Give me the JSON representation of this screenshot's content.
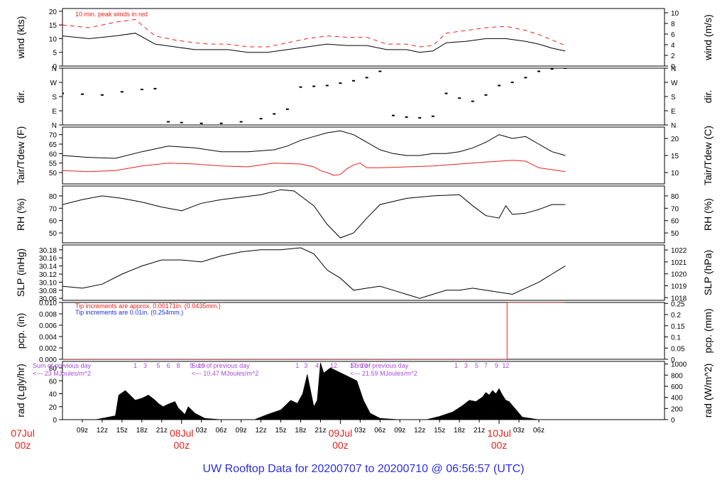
{
  "title": "UW Rooftop Data for 20200707  to  20200710 @ 06:56:57  (UTC)",
  "colors": {
    "black": "#000000",
    "red": "#e8201c",
    "blue": "#1a2fd8",
    "purple": "#a64bd6",
    "title": "#2a2ee0"
  },
  "time_axis": {
    "start_hour": -12,
    "end_hour": 79,
    "hour_ticks": [
      {
        "h": -9,
        "label": "09z"
      },
      {
        "h": -6,
        "label": "12z"
      },
      {
        "h": -3,
        "label": "15z"
      },
      {
        "h": 0,
        "label": "18z"
      },
      {
        "h": 3,
        "label": "21z"
      },
      {
        "h": 9,
        "label": "03z"
      },
      {
        "h": 12,
        "label": "06z"
      },
      {
        "h": 15,
        "label": "09z"
      },
      {
        "h": 18,
        "label": "12z"
      },
      {
        "h": 21,
        "label": "15z"
      },
      {
        "h": 24,
        "label": "18z"
      },
      {
        "h": 27,
        "label": "21z"
      },
      {
        "h": 33,
        "label": "03z"
      },
      {
        "h": 36,
        "label": "06z"
      },
      {
        "h": 39,
        "label": "09z"
      },
      {
        "h": 42,
        "label": "12z"
      },
      {
        "h": 45,
        "label": "15z"
      },
      {
        "h": 48,
        "label": "18z"
      },
      {
        "h": 51,
        "label": "21z"
      },
      {
        "h": 57,
        "label": "03z"
      },
      {
        "h": 60,
        "label": "06z"
      }
    ],
    "day_marks": [
      {
        "h": -18,
        "date": "07Jul",
        "hour": "00z"
      },
      {
        "h": 6,
        "date": "08Jul",
        "hour": "00z"
      },
      {
        "h": 30,
        "date": "09Jul",
        "hour": "00z"
      },
      {
        "h": 54,
        "date": "10Jul",
        "hour": "00z"
      }
    ]
  },
  "chart_data": [
    {
      "type": "line",
      "panel": "wind",
      "ylabel_left": "wind (kts)",
      "ylabel_right": "wind (m/s)",
      "ylim": [
        0,
        21
      ],
      "yticks_left": [
        0,
        5,
        10,
        15,
        20
      ],
      "yticks_right": [
        0,
        2,
        4,
        6,
        8,
        10
      ],
      "right_scale": 0.5144,
      "annotation": "10 min. peak winds in red",
      "series": [
        {
          "role": "sustained",
          "color": "black",
          "x": [
            -12,
            -8,
            -4,
            -1,
            2,
            5,
            8,
            10,
            13,
            16,
            19,
            22,
            25,
            28,
            31,
            34,
            37,
            40,
            42,
            44,
            46,
            49,
            52,
            55,
            58,
            60,
            62,
            64
          ],
          "y": [
            11,
            10,
            11,
            12,
            8,
            7,
            6,
            6,
            6,
            5,
            5,
            6,
            7,
            8,
            7.5,
            7.5,
            6,
            6,
            5,
            5.5,
            8.5,
            9,
            10,
            10,
            9,
            8,
            6.5,
            5.5
          ]
        },
        {
          "role": "peak",
          "color": "red",
          "x": [
            -12,
            -8,
            -4,
            -1,
            2,
            5,
            8,
            10,
            13,
            16,
            19,
            22,
            25,
            28,
            31,
            34,
            37,
            40,
            42,
            44,
            46,
            49,
            52,
            55,
            58,
            60,
            62,
            64
          ],
          "y": [
            15,
            14,
            16,
            17,
            11,
            9.5,
            8.5,
            8,
            8,
            7,
            7,
            8.5,
            10,
            11,
            10.5,
            10.5,
            8,
            8,
            7,
            7.5,
            12,
            13,
            14,
            14.5,
            13,
            11.5,
            9.5,
            7.5
          ]
        }
      ]
    },
    {
      "type": "scatter",
      "panel": "dir",
      "ylabel_left": "dir.",
      "ylabel_right": "dir.",
      "ylim": [
        0,
        360
      ],
      "ytick_values": [
        0,
        90,
        180,
        270,
        360
      ],
      "ytick_labels": [
        "N",
        "E",
        "S",
        "W",
        "N"
      ],
      "series": [
        {
          "color": "black",
          "x": [
            -12,
            -9,
            -6,
            -3,
            0,
            2,
            4,
            6,
            9,
            12,
            15,
            18,
            20,
            22,
            24,
            26,
            28,
            30,
            32,
            34,
            36,
            38,
            40,
            42,
            44,
            46,
            48,
            50,
            52,
            54,
            56,
            58,
            60,
            62,
            64
          ],
          "y": [
            200,
            195,
            190,
            210,
            225,
            230,
            20,
            15,
            10,
            10,
            20,
            40,
            70,
            100,
            240,
            245,
            250,
            265,
            280,
            300,
            340,
            60,
            50,
            45,
            55,
            200,
            170,
            150,
            190,
            250,
            270,
            300,
            340,
            355,
            360
          ]
        }
      ]
    },
    {
      "type": "line",
      "panel": "temp",
      "ylabel_left": "Tair/Tdew (F)",
      "ylabel_right": "Tair/Tdew (C)",
      "ylim": [
        44,
        74
      ],
      "yticks_left": [
        50,
        55,
        60,
        65,
        70
      ],
      "yticks_right": [
        10,
        15,
        20
      ],
      "series": [
        {
          "name": "Tair",
          "color": "black",
          "x": [
            -12,
            -8,
            -4,
            0,
            4,
            8,
            12,
            16,
            20,
            22,
            24,
            26,
            28,
            30,
            32,
            34,
            36,
            38,
            40,
            42,
            44,
            46,
            48,
            50,
            52,
            53,
            54,
            56,
            58,
            60,
            62,
            64
          ],
          "y": [
            59,
            58,
            57.5,
            61,
            64,
            63,
            61,
            61,
            62,
            64,
            67,
            69,
            71,
            72,
            70,
            66,
            62,
            60,
            59,
            59,
            60,
            60,
            61,
            63,
            66,
            68,
            70,
            68,
            69,
            65,
            61,
            59
          ]
        },
        {
          "name": "Tdew",
          "color": "red",
          "x": [
            -12,
            -8,
            -4,
            0,
            4,
            8,
            12,
            16,
            20,
            24,
            26,
            27,
            28,
            29,
            30,
            31,
            32,
            33,
            34,
            36,
            40,
            44,
            48,
            52,
            56,
            58,
            60,
            62,
            64
          ],
          "y": [
            51,
            50.5,
            51,
            53.5,
            55,
            54.5,
            53.5,
            53,
            55,
            54.5,
            53,
            51,
            50,
            48.5,
            49,
            52,
            54,
            55,
            52.5,
            52.5,
            53,
            53.5,
            54.5,
            55.5,
            56.5,
            56,
            52.5,
            51.5,
            50.5
          ]
        }
      ]
    },
    {
      "type": "line",
      "panel": "rh",
      "ylabel_left": "RH (%)",
      "ylabel_right": "RH (%)",
      "ylim": [
        42,
        88
      ],
      "yticks_left": [
        50,
        60,
        70,
        80
      ],
      "yticks_right": [
        50,
        60,
        70,
        80
      ],
      "series": [
        {
          "color": "black",
          "x": [
            -12,
            -9,
            -6,
            -3,
            0,
            3,
            6,
            9,
            12,
            15,
            18,
            21,
            23,
            26,
            28,
            30,
            32,
            34,
            36,
            40,
            44,
            48,
            50,
            52,
            54,
            55,
            56,
            58,
            60,
            62,
            64
          ],
          "y": [
            73,
            77,
            80,
            78,
            75,
            71,
            68,
            74,
            77,
            79,
            81,
            85,
            84,
            72,
            57,
            46,
            50,
            62,
            73,
            78,
            80,
            81,
            72,
            64,
            62,
            72,
            65,
            66,
            69,
            73,
            73
          ]
        }
      ]
    },
    {
      "type": "line",
      "panel": "slp",
      "ylabel_left": "SLP (inHg)",
      "ylabel_right": "SLP (hPa)",
      "ylim": [
        30.055,
        30.192
      ],
      "yticks_left": [
        30.06,
        30.08,
        30.1,
        30.12,
        30.14,
        30.16,
        30.18
      ],
      "yticks_right": [
        1018,
        1019,
        1020,
        1021,
        1022
      ],
      "right_scale": 33.8639,
      "series": [
        {
          "color": "black",
          "x": [
            -12,
            -9,
            -6,
            -3,
            0,
            3,
            6,
            9,
            12,
            15,
            18,
            21,
            24,
            26,
            28,
            30,
            32,
            34,
            36,
            38,
            40,
            42,
            44,
            46,
            48,
            50,
            52,
            54,
            56,
            58,
            60,
            62,
            64
          ],
          "y": [
            30.09,
            30.085,
            30.095,
            30.12,
            30.14,
            30.155,
            30.155,
            30.15,
            30.165,
            30.175,
            30.18,
            30.18,
            30.185,
            30.17,
            30.13,
            30.11,
            30.08,
            30.085,
            30.09,
            30.08,
            30.07,
            30.06,
            30.07,
            30.08,
            30.08,
            30.085,
            30.08,
            30.075,
            30.07,
            30.085,
            30.1,
            30.12,
            30.14
          ]
        }
      ]
    },
    {
      "type": "line",
      "panel": "pcp",
      "ylabel_left": "pcp. (in)",
      "ylabel_right": "pcp. (mm)",
      "ylim": [
        0,
        0.01
      ],
      "yticks_left": [
        0.0,
        0.002,
        0.004,
        0.006,
        0.008,
        0.01
      ],
      "ytick_labels_left": [
        "0.000",
        "0.002",
        "0.004",
        "0.006",
        "0.008",
        "0.010"
      ],
      "yticks_right": [
        0,
        0.05,
        0.1,
        0.15,
        0.2,
        0.25
      ],
      "ytick_labels_right": [
        "0",
        "0.05",
        "0.1",
        "0.15",
        "0.2",
        "0.25"
      ],
      "right_scale": 25.4,
      "notes": [
        {
          "text": "Tip increments are approx. 0.00171in. (0.0435mm.)",
          "color": "red"
        },
        {
          "text": "Tip increments are 0.01in. (0.254mm.)",
          "color": "blue"
        }
      ],
      "series": [
        {
          "color": "red",
          "x": [
            -12,
            55.2,
            55.2,
            64
          ],
          "y": [
            0,
            0,
            0.01,
            0.01
          ]
        }
      ]
    },
    {
      "type": "area",
      "panel": "rad",
      "ylabel_left": "rad (Lgly/hr)",
      "ylabel_right": "rad (W/m^2)",
      "ylim": [
        0,
        90
      ],
      "yticks_left": [
        0,
        20,
        40,
        60,
        80
      ],
      "yticks_right": [
        0,
        200,
        400,
        600,
        800,
        1000
      ],
      "right_scale": 11.63,
      "daily_notes": [
        {
          "h": -12,
          "line1": "Sum of previous day",
          "line2": "<--- 23 MJoules/m^2"
        },
        {
          "h": 12,
          "line1": "Sum of previous day",
          "line2": "<--- 10.47 MJoules/m^2"
        },
        {
          "h": 36,
          "line1": "Sum of previous day",
          "line2": "<--- 21.59 MJoules/m^2"
        }
      ],
      "hour_marks": [
        {
          "h": -1,
          "label": "1"
        },
        {
          "h": 0.5,
          "label": "3"
        },
        {
          "h": 2.5,
          "label": "5"
        },
        {
          "h": 4,
          "label": "6"
        },
        {
          "h": 5.5,
          "label": "8"
        },
        {
          "h": 7.5,
          "label": "9"
        },
        {
          "h": 9,
          "label": "10"
        },
        {
          "h": 23.5,
          "label": "1"
        },
        {
          "h": 24.8,
          "label": "3"
        },
        {
          "h": 26.5,
          "label": "4"
        },
        {
          "h": 29,
          "label": "12"
        },
        {
          "h": 32,
          "label": "17"
        },
        {
          "h": 33.6,
          "label": "20"
        },
        {
          "h": 47.5,
          "label": "1"
        },
        {
          "h": 49,
          "label": "3"
        },
        {
          "h": 50.6,
          "label": "5"
        },
        {
          "h": 52,
          "label": "7"
        },
        {
          "h": 53.6,
          "label": "9"
        },
        {
          "h": 55,
          "label": "12"
        }
      ],
      "series": [
        {
          "color": "black",
          "x": [
            -10,
            -7,
            -4,
            -3.5,
            -2.5,
            -1,
            0,
            1,
            2,
            2.5,
            3.2,
            4,
            5,
            5.5,
            6.5,
            7,
            8,
            9.5,
            12,
            17,
            19,
            21,
            22.5,
            23.5,
            24.3,
            25,
            26,
            26.5,
            27,
            27.5,
            28.5,
            29.5,
            30.5,
            31.5,
            32.5,
            33,
            33.5,
            34.5,
            36,
            39,
            43,
            45,
            47,
            48.5,
            49.5,
            50.5,
            51.5,
            52,
            52.5,
            53,
            53.5,
            54,
            54.5,
            55,
            55.5,
            56,
            57.5,
            60
          ],
          "y": [
            0,
            0,
            6,
            38,
            45,
            30,
            33,
            38,
            30,
            25,
            20,
            24,
            28,
            18,
            8,
            20,
            10,
            2,
            0,
            0,
            8,
            15,
            30,
            25,
            40,
            70,
            20,
            30,
            88,
            72,
            80,
            75,
            70,
            65,
            60,
            45,
            30,
            10,
            2,
            0,
            0,
            5,
            12,
            22,
            30,
            28,
            35,
            42,
            38,
            45,
            40,
            48,
            38,
            30,
            28,
            22,
            4,
            0
          ]
        }
      ]
    }
  ]
}
